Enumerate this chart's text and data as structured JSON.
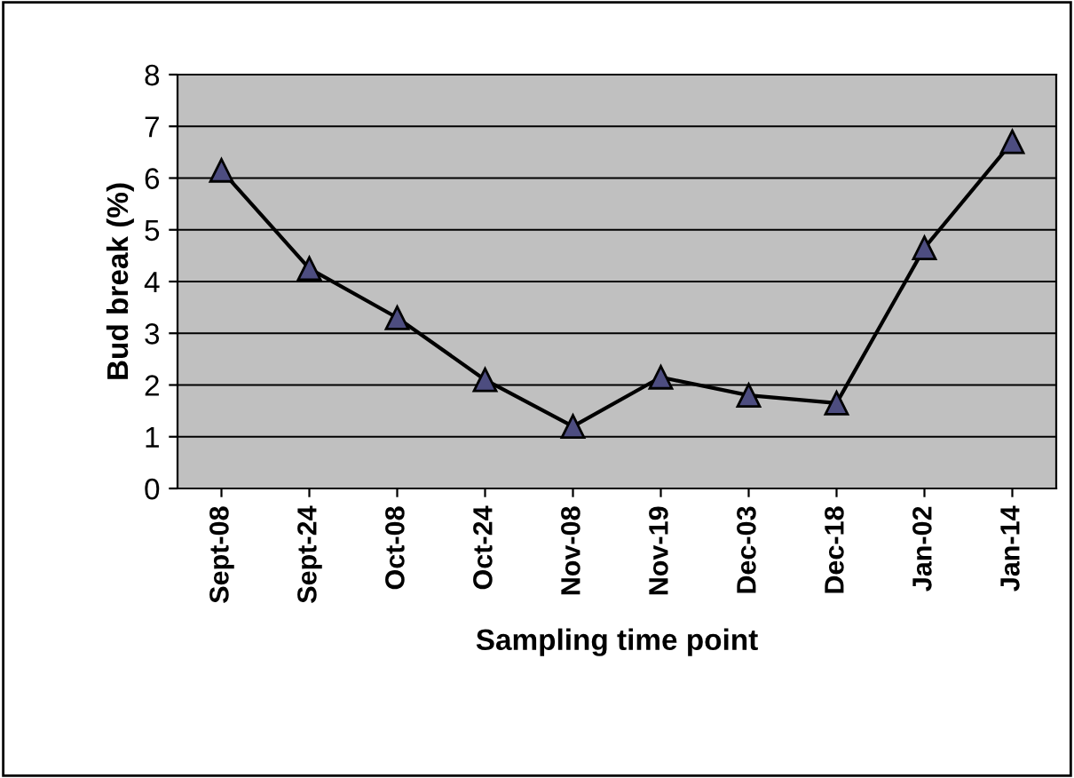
{
  "chart_data": {
    "type": "line",
    "xlabel": "Sampling time point",
    "ylabel": "Bud break (%)",
    "categories": [
      "Sept-08",
      "Sept-24",
      "Oct-08",
      "Oct-24",
      "Nov-08",
      "Nov-19",
      "Dec-03",
      "Dec-18",
      "Jan-02",
      "Jan-14"
    ],
    "series": [
      {
        "color": "#000000",
        "values": [
          6.15,
          4.25,
          3.3,
          2.1,
          1.2,
          2.15,
          1.8,
          1.65,
          4.65,
          6.7
        ]
      }
    ],
    "marker": "triangle",
    "line_style": "solid",
    "ylim": [
      0,
      8
    ],
    "yticks": [
      0,
      1,
      2,
      3,
      4,
      5,
      6,
      7,
      8
    ],
    "grid": "y",
    "legend": false
  }
}
